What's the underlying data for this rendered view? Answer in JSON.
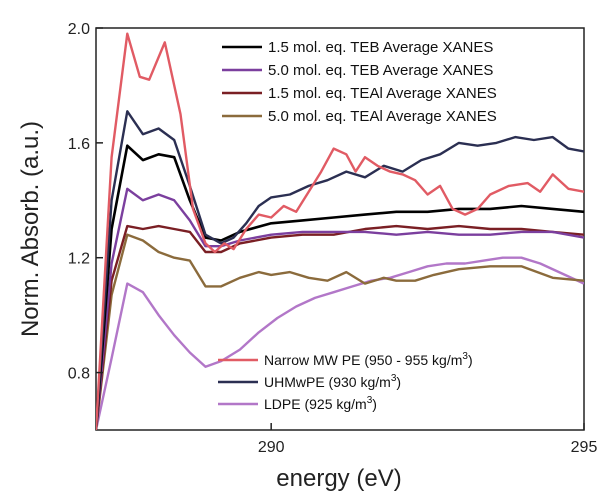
{
  "chart_data": {
    "type": "line",
    "xlabel": "energy (eV)",
    "ylabel": "Norm. Absorb. (a.u.)",
    "xlim": [
      287.2,
      295.0
    ],
    "ylim": [
      0.6,
      2.0
    ],
    "x_ticks": [
      {
        "value": 290,
        "label": "290"
      },
      {
        "value": 295,
        "label": "295"
      }
    ],
    "y_ticks": [
      {
        "value": 0.8,
        "label": "0.8"
      },
      {
        "value": 1.2,
        "label": "1.2"
      },
      {
        "value": 1.6,
        "label": "1.6"
      },
      {
        "value": 2.0,
        "label": "2.0"
      }
    ],
    "legend_top": {
      "placement": "top-right",
      "entries": [
        {
          "label": "1.5 mol. eq. TEB Average XANES",
          "series": 0
        },
        {
          "label": "5.0 mol. eq. TEB Average XANES",
          "series": 1
        },
        {
          "label": "1.5 mol. eq. TEAl Average XANES",
          "series": 2
        },
        {
          "label": "5.0 mol. eq. TEAl Average XANES",
          "series": 3
        }
      ]
    },
    "legend_bottom": {
      "placement": "bottom-center",
      "entries": [
        {
          "label": "Narrow MW PE (950 - 955 kg/m",
          "sup": "3",
          "tail": ")",
          "series": 4
        },
        {
          "label": "UHMwPE (930 kg/m",
          "sup": "3",
          "tail": ")",
          "series": 5
        },
        {
          "label": "LDPE (925 kg/m",
          "sup": "3",
          "tail": ")",
          "series": 6
        }
      ]
    },
    "series": [
      {
        "name": "1.5 mol. eq. TEB Average XANES",
        "color": "#000000",
        "width": 2.6,
        "points": [
          [
            287.2,
            0.6
          ],
          [
            287.45,
            1.3
          ],
          [
            287.7,
            1.59
          ],
          [
            287.95,
            1.54
          ],
          [
            288.2,
            1.56
          ],
          [
            288.45,
            1.55
          ],
          [
            288.7,
            1.4
          ],
          [
            288.95,
            1.27
          ],
          [
            289.2,
            1.26
          ],
          [
            289.5,
            1.29
          ],
          [
            290,
            1.32
          ],
          [
            290.5,
            1.33
          ],
          [
            291,
            1.34
          ],
          [
            291.5,
            1.35
          ],
          [
            292,
            1.36
          ],
          [
            292.5,
            1.36
          ],
          [
            293,
            1.37
          ],
          [
            293.5,
            1.37
          ],
          [
            294,
            1.38
          ],
          [
            294.5,
            1.37
          ],
          [
            295,
            1.36
          ]
        ]
      },
      {
        "name": "5.0 mol. eq. TEB Average XANES",
        "color": "#7b3f9e",
        "width": 2.4,
        "points": [
          [
            287.2,
            0.6
          ],
          [
            287.45,
            1.18
          ],
          [
            287.7,
            1.44
          ],
          [
            287.95,
            1.4
          ],
          [
            288.2,
            1.42
          ],
          [
            288.45,
            1.4
          ],
          [
            288.7,
            1.33
          ],
          [
            288.95,
            1.24
          ],
          [
            289.2,
            1.24
          ],
          [
            289.5,
            1.26
          ],
          [
            290,
            1.28
          ],
          [
            290.5,
            1.29
          ],
          [
            291,
            1.29
          ],
          [
            291.5,
            1.29
          ],
          [
            292,
            1.28
          ],
          [
            292.5,
            1.29
          ],
          [
            293,
            1.28
          ],
          [
            293.5,
            1.28
          ],
          [
            294,
            1.29
          ],
          [
            294.5,
            1.29
          ],
          [
            295,
            1.27
          ]
        ]
      },
      {
        "name": "1.5 mol. eq. TEAl Average XANES",
        "color": "#7a1f24",
        "width": 2.4,
        "points": [
          [
            287.2,
            0.6
          ],
          [
            287.45,
            1.12
          ],
          [
            287.7,
            1.31
          ],
          [
            287.95,
            1.3
          ],
          [
            288.2,
            1.31
          ],
          [
            288.45,
            1.3
          ],
          [
            288.7,
            1.29
          ],
          [
            288.95,
            1.22
          ],
          [
            289.2,
            1.22
          ],
          [
            289.5,
            1.25
          ],
          [
            290,
            1.27
          ],
          [
            290.5,
            1.28
          ],
          [
            291,
            1.28
          ],
          [
            291.5,
            1.3
          ],
          [
            292,
            1.31
          ],
          [
            292.5,
            1.3
          ],
          [
            293,
            1.31
          ],
          [
            293.5,
            1.3
          ],
          [
            294,
            1.3
          ],
          [
            294.5,
            1.29
          ],
          [
            295,
            1.28
          ]
        ]
      },
      {
        "name": "5.0 mol. eq. TEAl Average XANES",
        "color": "#8b6b3c",
        "width": 2.4,
        "points": [
          [
            287.2,
            0.6
          ],
          [
            287.45,
            1.07
          ],
          [
            287.7,
            1.28
          ],
          [
            287.95,
            1.26
          ],
          [
            288.2,
            1.22
          ],
          [
            288.45,
            1.2
          ],
          [
            288.7,
            1.19
          ],
          [
            288.95,
            1.1
          ],
          [
            289.2,
            1.1
          ],
          [
            289.5,
            1.13
          ],
          [
            289.8,
            1.15
          ],
          [
            290,
            1.14
          ],
          [
            290.3,
            1.15
          ],
          [
            290.6,
            1.13
          ],
          [
            290.9,
            1.12
          ],
          [
            291.2,
            1.15
          ],
          [
            291.5,
            1.11
          ],
          [
            291.8,
            1.13
          ],
          [
            292,
            1.12
          ],
          [
            292.3,
            1.12
          ],
          [
            292.6,
            1.14
          ],
          [
            293,
            1.16
          ],
          [
            293.5,
            1.17
          ],
          [
            294,
            1.17
          ],
          [
            294.5,
            1.13
          ],
          [
            295,
            1.12
          ]
        ]
      },
      {
        "name": "Narrow MW PE (950 - 955 kg/m3)",
        "color": "#e15b64",
        "width": 2.4,
        "points": [
          [
            287.2,
            0.6
          ],
          [
            287.45,
            1.55
          ],
          [
            287.7,
            1.98
          ],
          [
            287.9,
            1.83
          ],
          [
            288.05,
            1.82
          ],
          [
            288.3,
            1.95
          ],
          [
            288.55,
            1.7
          ],
          [
            288.75,
            1.37
          ],
          [
            288.95,
            1.25
          ],
          [
            289.1,
            1.22
          ],
          [
            289.25,
            1.25
          ],
          [
            289.4,
            1.23
          ],
          [
            289.6,
            1.3
          ],
          [
            289.8,
            1.35
          ],
          [
            290,
            1.34
          ],
          [
            290.2,
            1.38
          ],
          [
            290.4,
            1.36
          ],
          [
            290.6,
            1.43
          ],
          [
            290.8,
            1.5
          ],
          [
            291,
            1.58
          ],
          [
            291.2,
            1.56
          ],
          [
            291.35,
            1.5
          ],
          [
            291.5,
            1.55
          ],
          [
            291.7,
            1.52
          ],
          [
            291.9,
            1.5
          ],
          [
            292.1,
            1.49
          ],
          [
            292.3,
            1.47
          ],
          [
            292.5,
            1.42
          ],
          [
            292.7,
            1.45
          ],
          [
            292.9,
            1.37
          ],
          [
            293.1,
            1.35
          ],
          [
            293.3,
            1.37
          ],
          [
            293.5,
            1.42
          ],
          [
            293.8,
            1.45
          ],
          [
            294.1,
            1.46
          ],
          [
            294.3,
            1.43
          ],
          [
            294.5,
            1.49
          ],
          [
            294.75,
            1.44
          ],
          [
            295,
            1.43
          ]
        ]
      },
      {
        "name": "UHMwPE (930 kg/m3)",
        "color": "#2b2f52",
        "width": 2.4,
        "points": [
          [
            287.2,
            0.6
          ],
          [
            287.45,
            1.4
          ],
          [
            287.7,
            1.71
          ],
          [
            287.95,
            1.63
          ],
          [
            288.2,
            1.65
          ],
          [
            288.45,
            1.61
          ],
          [
            288.7,
            1.45
          ],
          [
            288.95,
            1.28
          ],
          [
            289.2,
            1.25
          ],
          [
            289.4,
            1.27
          ],
          [
            289.6,
            1.32
          ],
          [
            289.8,
            1.38
          ],
          [
            290,
            1.41
          ],
          [
            290.3,
            1.42
          ],
          [
            290.6,
            1.45
          ],
          [
            290.9,
            1.47
          ],
          [
            291.2,
            1.5
          ],
          [
            291.5,
            1.48
          ],
          [
            291.8,
            1.52
          ],
          [
            292.1,
            1.5
          ],
          [
            292.4,
            1.54
          ],
          [
            292.7,
            1.56
          ],
          [
            293,
            1.6
          ],
          [
            293.3,
            1.59
          ],
          [
            293.6,
            1.6
          ],
          [
            293.9,
            1.62
          ],
          [
            294.2,
            1.61
          ],
          [
            294.5,
            1.62
          ],
          [
            294.75,
            1.58
          ],
          [
            295,
            1.57
          ]
        ]
      },
      {
        "name": "LDPE (925 kg/m3)",
        "color": "#b277c8",
        "width": 2.4,
        "points": [
          [
            287.2,
            0.6
          ],
          [
            287.45,
            0.85
          ],
          [
            287.7,
            1.11
          ],
          [
            287.95,
            1.08
          ],
          [
            288.2,
            1.0
          ],
          [
            288.45,
            0.93
          ],
          [
            288.7,
            0.87
          ],
          [
            288.95,
            0.82
          ],
          [
            289.2,
            0.84
          ],
          [
            289.5,
            0.88
          ],
          [
            289.8,
            0.94
          ],
          [
            290.1,
            0.99
          ],
          [
            290.4,
            1.03
          ],
          [
            290.7,
            1.06
          ],
          [
            291,
            1.08
          ],
          [
            291.3,
            1.1
          ],
          [
            291.6,
            1.12
          ],
          [
            291.9,
            1.13
          ],
          [
            292.2,
            1.15
          ],
          [
            292.5,
            1.17
          ],
          [
            292.8,
            1.18
          ],
          [
            293.1,
            1.18
          ],
          [
            293.4,
            1.19
          ],
          [
            293.7,
            1.2
          ],
          [
            294,
            1.2
          ],
          [
            294.3,
            1.18
          ],
          [
            294.6,
            1.15
          ],
          [
            295,
            1.11
          ]
        ]
      }
    ]
  }
}
